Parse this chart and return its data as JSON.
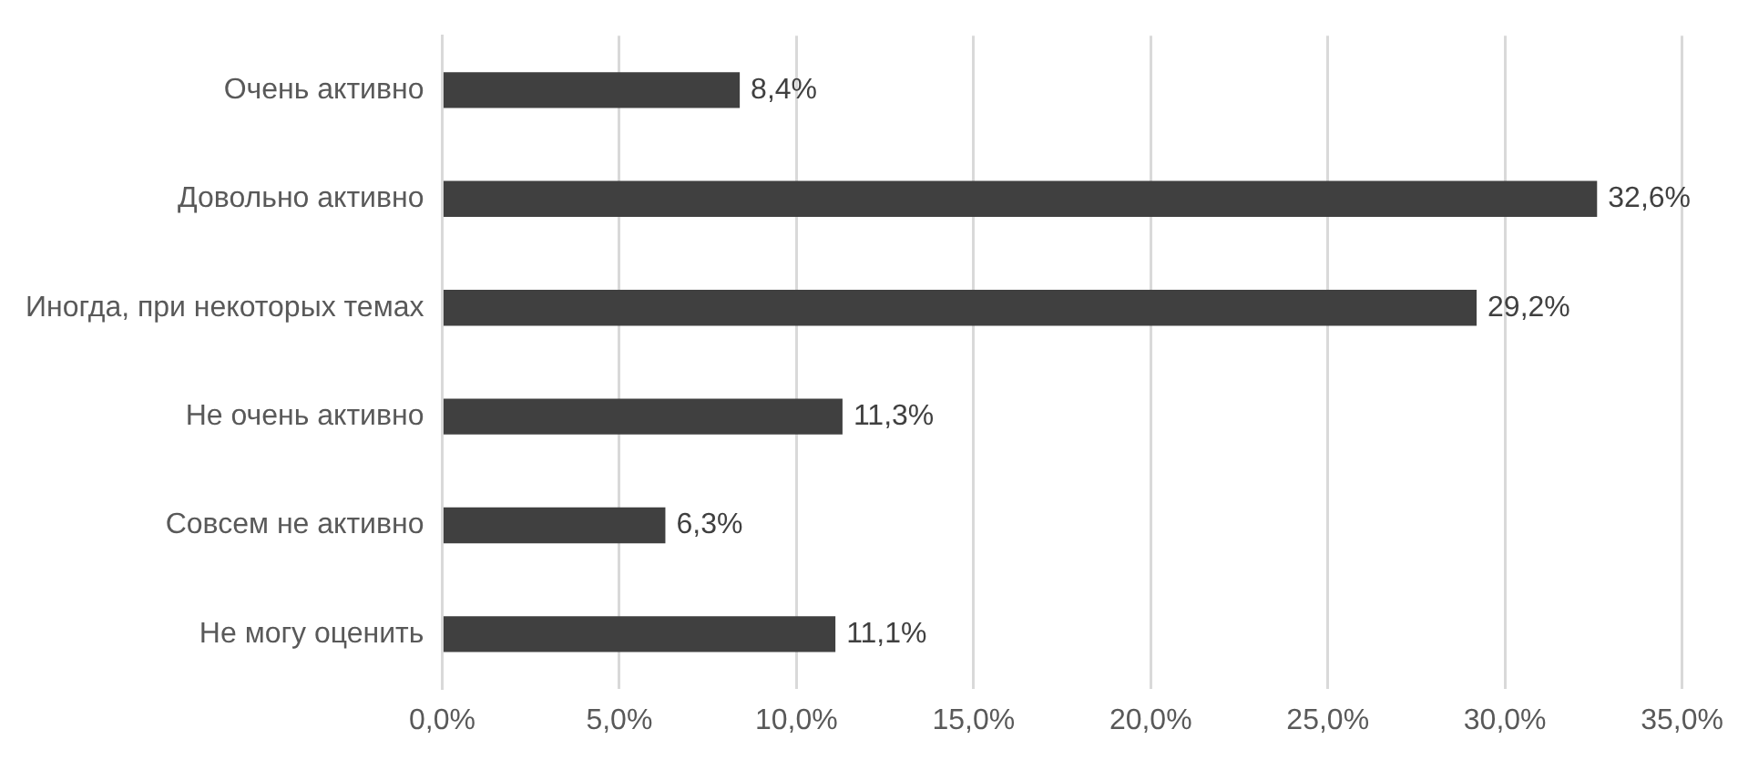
{
  "chart_data": {
    "type": "bar",
    "orientation": "horizontal",
    "categories": [
      "Очень активно",
      "Довольно активно",
      "Иногда, при некоторых темах",
      "Не очень активно",
      "Совсем не активно",
      "Не могу оценить"
    ],
    "values": [
      8.4,
      32.6,
      29.2,
      11.3,
      6.3,
      11.1
    ],
    "value_labels": [
      "8,4%",
      "32,6%",
      "29,2%",
      "11,3%",
      "6,3%",
      "11,1%"
    ],
    "color": "#404040",
    "xlim": [
      0,
      35
    ],
    "xticks": [
      {
        "value": 0,
        "label": "0,0%"
      },
      {
        "value": 5,
        "label": "5,0%"
      },
      {
        "value": 10,
        "label": "10,0%"
      },
      {
        "value": 15,
        "label": "15,0%"
      },
      {
        "value": 20,
        "label": "20,0%"
      },
      {
        "value": 25,
        "label": "25,0%"
      },
      {
        "value": 30,
        "label": "30,0%"
      },
      {
        "value": 35,
        "label": "35,0%"
      }
    ],
    "grid": "x",
    "legend": false
  }
}
